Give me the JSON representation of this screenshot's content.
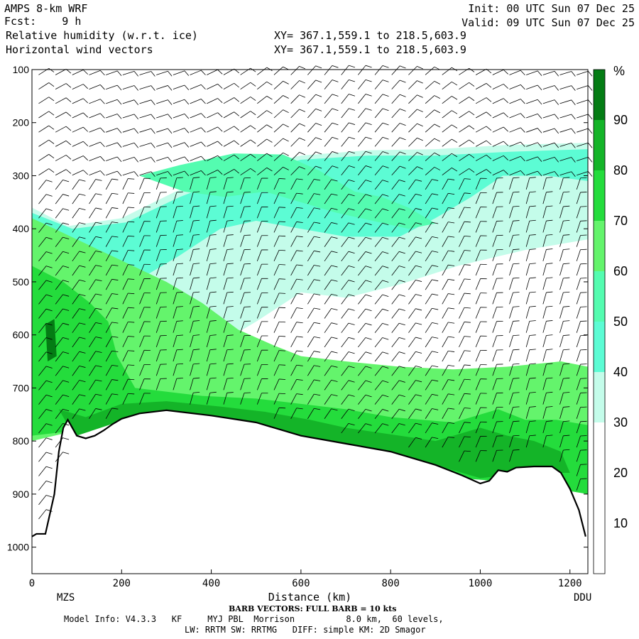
{
  "header": {
    "model": "AMPS 8-km WRF",
    "fcst_label": "Fcst:",
    "fcst_value": "9 h",
    "field1": "Relative humidity (w.r.t. ice)",
    "field2": "Horizontal wind vectors",
    "init": "Init: 00 UTC Sun 07 Dec 25",
    "valid": "Valid: 09 UTC Sun 07 Dec 25",
    "xy1": "XY= 367.1,559.1 to 218.5,603.9",
    "xy2": "XY= 367.1,559.1 to 218.5,603.9"
  },
  "footer": {
    "barb": "BARB VECTORS: FULL BARB = 10 kts",
    "model_info": "Model Info: V4.3.3   KF     MYJ PBL  Morrison          8.0 km,  60 levels,",
    "physics": "LW: RRTM SW: RRTMG   DIFF: simple KM: 2D Smagor"
  },
  "chart_data": {
    "type": "heatmap",
    "xlabel": "Distance (km)",
    "x_ticks": [
      0,
      200,
      400,
      600,
      800,
      1000,
      1200
    ],
    "xlim": [
      0,
      1240
    ],
    "x_endpoints": {
      "left": "MZS",
      "right": "DDU"
    },
    "ylabel": "",
    "y_ticks": [
      100,
      200,
      300,
      400,
      500,
      600,
      700,
      800,
      900,
      1000
    ],
    "ylim": [
      1050,
      100
    ],
    "colorbar": {
      "unit": "%",
      "labels": [
        10,
        20,
        30,
        40,
        50,
        60,
        70,
        80,
        90
      ],
      "bins": [
        {
          "range": [
            0,
            30
          ],
          "color": "#ffffff"
        },
        {
          "range": [
            30,
            40
          ],
          "color": "#c4fcea"
        },
        {
          "range": [
            40,
            50
          ],
          "color": "#5cfcd4"
        },
        {
          "range": [
            50,
            60
          ],
          "color": "#54fcb0"
        },
        {
          "range": [
            60,
            70
          ],
          "color": "#64f46c"
        },
        {
          "range": [
            70,
            80
          ],
          "color": "#24dc3c"
        },
        {
          "range": [
            80,
            90
          ],
          "color": "#14b428"
        },
        {
          "range": [
            90,
            100
          ],
          "color": "#047c14"
        }
      ]
    },
    "terrain_surface_hpa": [
      [
        0,
        980
      ],
      [
        10,
        975
      ],
      [
        30,
        975
      ],
      [
        50,
        900
      ],
      [
        60,
        820
      ],
      [
        70,
        775
      ],
      [
        80,
        760
      ],
      [
        90,
        775
      ],
      [
        100,
        790
      ],
      [
        120,
        795
      ],
      [
        140,
        790
      ],
      [
        160,
        780
      ],
      [
        180,
        768
      ],
      [
        200,
        758
      ],
      [
        240,
        748
      ],
      [
        300,
        742
      ],
      [
        400,
        752
      ],
      [
        500,
        765
      ],
      [
        600,
        790
      ],
      [
        700,
        805
      ],
      [
        800,
        820
      ],
      [
        900,
        845
      ],
      [
        960,
        865
      ],
      [
        1000,
        880
      ],
      [
        1020,
        875
      ],
      [
        1040,
        855
      ],
      [
        1060,
        858
      ],
      [
        1080,
        850
      ],
      [
        1120,
        848
      ],
      [
        1160,
        848
      ],
      [
        1180,
        860
      ],
      [
        1200,
        890
      ],
      [
        1220,
        930
      ],
      [
        1235,
        980
      ]
    ],
    "humidity_bands": [
      {
        "level": "30-40",
        "polygon": [
          [
            0,
            360
          ],
          [
            80,
            395
          ],
          [
            200,
            380
          ],
          [
            320,
            330
          ],
          [
            450,
            290
          ],
          [
            600,
            262
          ],
          [
            750,
            252
          ],
          [
            900,
            250
          ],
          [
            1060,
            242
          ],
          [
            1240,
            238
          ],
          [
            1240,
            420
          ],
          [
            1100,
            440
          ],
          [
            950,
            470
          ],
          [
            820,
            505
          ],
          [
            700,
            530
          ],
          [
            600,
            520
          ],
          [
            500,
            575
          ],
          [
            420,
            615
          ],
          [
            340,
            650
          ],
          [
            240,
            670
          ],
          [
            140,
            680
          ],
          [
            60,
            700
          ],
          [
            0,
            700
          ]
        ]
      },
      {
        "level": "40-50",
        "polygon": [
          [
            0,
            370
          ],
          [
            90,
            400
          ],
          [
            210,
            388
          ],
          [
            330,
            340
          ],
          [
            460,
            298
          ],
          [
            600,
            270
          ],
          [
            750,
            262
          ],
          [
            900,
            262
          ],
          [
            1060,
            255
          ],
          [
            1240,
            250
          ],
          [
            1240,
            310
          ],
          [
            1150,
            300
          ],
          [
            1050,
            300
          ],
          [
            980,
            340
          ],
          [
            900,
            380
          ],
          [
            820,
            415
          ],
          [
            700,
            415
          ],
          [
            600,
            400
          ],
          [
            500,
            385
          ],
          [
            420,
            400
          ],
          [
            330,
            450
          ],
          [
            250,
            490
          ],
          [
            150,
            520
          ],
          [
            60,
            540
          ],
          [
            0,
            540
          ]
        ]
      },
      {
        "level": "50-60",
        "polygon": [
          [
            240,
            300
          ],
          [
            330,
            280
          ],
          [
            450,
            258
          ],
          [
            560,
            260
          ],
          [
            640,
            290
          ],
          [
            720,
            330
          ],
          [
            780,
            340
          ],
          [
            840,
            360
          ],
          [
            900,
            390
          ],
          [
            840,
            400
          ],
          [
            760,
            385
          ],
          [
            680,
            370
          ],
          [
            600,
            350
          ],
          [
            520,
            330
          ],
          [
            430,
            340
          ],
          [
            340,
            330
          ]
        ]
      },
      {
        "level": "60-70 low",
        "polygon": [
          [
            0,
            380
          ],
          [
            100,
            420
          ],
          [
            200,
            460
          ],
          [
            300,
            500
          ],
          [
            380,
            540
          ],
          [
            460,
            590
          ],
          [
            540,
            620
          ],
          [
            600,
            640
          ],
          [
            700,
            650
          ],
          [
            820,
            660
          ],
          [
            940,
            665
          ],
          [
            1060,
            660
          ],
          [
            1180,
            650
          ],
          [
            1240,
            660
          ],
          [
            1240,
            900
          ],
          [
            1100,
            880
          ],
          [
            960,
            870
          ],
          [
            800,
            830
          ],
          [
            600,
            800
          ],
          [
            400,
            760
          ],
          [
            250,
            750
          ],
          [
            100,
            780
          ],
          [
            0,
            800
          ]
        ]
      },
      {
        "level": "70-80",
        "polygon": [
          [
            0,
            470
          ],
          [
            70,
            500
          ],
          [
            130,
            540
          ],
          [
            170,
            575
          ],
          [
            190,
            640
          ],
          [
            230,
            700
          ],
          [
            380,
            715
          ],
          [
            500,
            720
          ],
          [
            600,
            730
          ],
          [
            700,
            740
          ],
          [
            800,
            755
          ],
          [
            940,
            765
          ],
          [
            1040,
            740
          ],
          [
            1100,
            760
          ],
          [
            1170,
            760
          ],
          [
            1240,
            770
          ],
          [
            1240,
            900
          ],
          [
            1100,
            880
          ],
          [
            960,
            870
          ],
          [
            800,
            830
          ],
          [
            600,
            800
          ],
          [
            400,
            760
          ],
          [
            250,
            750
          ],
          [
            100,
            780
          ],
          [
            0,
            790
          ]
        ]
      },
      {
        "level": "80-90",
        "polygon": [
          [
            60,
            740
          ],
          [
            120,
            755
          ],
          [
            200,
            730
          ],
          [
            300,
            725
          ],
          [
            420,
            735
          ],
          [
            520,
            745
          ],
          [
            620,
            760
          ],
          [
            700,
            775
          ],
          [
            820,
            790
          ],
          [
            900,
            800
          ],
          [
            1000,
            775
          ],
          [
            1060,
            790
          ],
          [
            1120,
            800
          ],
          [
            1180,
            820
          ],
          [
            1200,
            860
          ],
          [
            1100,
            860
          ],
          [
            1000,
            870
          ],
          [
            900,
            845
          ],
          [
            800,
            825
          ],
          [
            600,
            795
          ],
          [
            400,
            760
          ],
          [
            250,
            748
          ],
          [
            100,
            790
          ],
          [
            80,
            770
          ]
        ]
      },
      {
        "level": "90-100",
        "polygon": [
          [
            30,
            580
          ],
          [
            50,
            570
          ],
          [
            55,
            640
          ],
          [
            35,
            650
          ]
        ]
      }
    ]
  }
}
